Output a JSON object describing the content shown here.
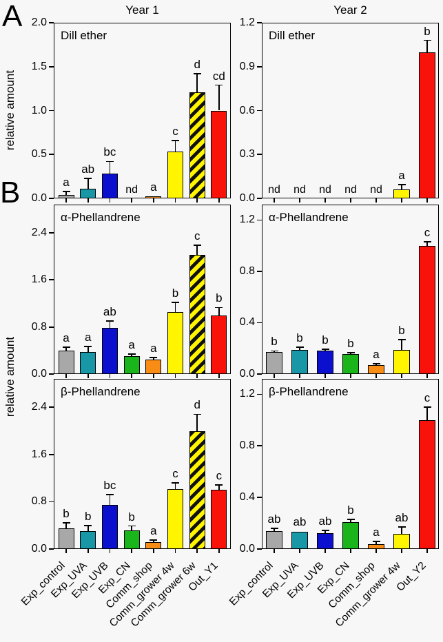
{
  "figure": {
    "panel_labels": [
      "A",
      "B"
    ],
    "column_titles": [
      "Year 1",
      "Year 2"
    ],
    "ylabel": "relative amount",
    "colors": {
      "gray": "#a8a8a8",
      "teal": "#1897a7",
      "blue": "#0b10cf",
      "green": "#1ab51a",
      "orange": "#f88c14",
      "yellow": "#fff500",
      "red": "#f91209",
      "hatch_stripe": "#111111",
      "axis": "#000000"
    }
  },
  "chart_data": [
    {
      "id": "dill-ether-year1",
      "type": "bar",
      "title": "Dill ether",
      "column_title": "Year 1",
      "row": 0,
      "col": 0,
      "ylim": [
        0,
        2.0
      ],
      "yticks": [
        0.0,
        0.5,
        1.0,
        1.5,
        2.0
      ],
      "categories": [
        "Exp_control",
        "Exp_UVA",
        "Exp_UVB",
        "Exp_CN",
        "Comm_shop",
        "Comm_grower 4w",
        "Comm_grower 6w",
        "Out_Y1"
      ],
      "bar_styles": [
        "gray",
        "teal",
        "blue",
        "green",
        "orange",
        "yellow",
        "hatched",
        "red"
      ],
      "values": [
        0.04,
        0.11,
        0.28,
        null,
        0.02,
        0.53,
        1.21,
        1.0
      ],
      "errors": [
        0.04,
        0.12,
        0.14,
        null,
        0.0,
        0.13,
        0.21,
        0.29
      ],
      "letters": [
        "a",
        "ab",
        "bc",
        "nd",
        "a",
        "c",
        "d",
        "cd"
      ]
    },
    {
      "id": "dill-ether-year2",
      "type": "bar",
      "title": "Dill ether",
      "column_title": "Year 2",
      "row": 0,
      "col": 1,
      "ylim": [
        0,
        1.2
      ],
      "yticks": [
        0.0,
        0.3,
        0.6,
        0.9,
        1.2
      ],
      "categories": [
        "Exp_control",
        "Exp_UVA",
        "Exp_UVB",
        "Exp_CN",
        "Comm_shop",
        "Comm_grower 4w",
        "Out_Y2"
      ],
      "bar_styles": [
        "gray",
        "teal",
        "blue",
        "green",
        "orange",
        "yellow",
        "red"
      ],
      "values": [
        null,
        null,
        null,
        null,
        null,
        0.06,
        1.0
      ],
      "errors": [
        null,
        null,
        null,
        null,
        null,
        0.035,
        0.08
      ],
      "letters": [
        "nd",
        "nd",
        "nd",
        "nd",
        "nd",
        "a",
        "b"
      ]
    },
    {
      "id": "alpha-phellandrene-year1",
      "type": "bar",
      "title": "α-Phellandrene",
      "column_title": "Year 1",
      "row": 1,
      "col": 0,
      "ylim": [
        0,
        2.88
      ],
      "yticks": [
        0.0,
        0.8,
        1.6,
        2.4
      ],
      "categories": [
        "Exp_control",
        "Exp_UVA",
        "Exp_UVB",
        "Exp_CN",
        "Comm_shop",
        "Comm_grower 4w",
        "Comm_grower 6w",
        "Out_Y1"
      ],
      "bar_styles": [
        "gray",
        "teal",
        "blue",
        "green",
        "orange",
        "yellow",
        "hatched",
        "red"
      ],
      "values": [
        0.4,
        0.37,
        0.78,
        0.3,
        0.25,
        1.05,
        2.02,
        1.0
      ],
      "errors": [
        0.06,
        0.1,
        0.12,
        0.04,
        0.03,
        0.17,
        0.17,
        0.13
      ],
      "letters": [
        "a",
        "a",
        "ab",
        "a",
        "a",
        "b",
        "c",
        "b"
      ]
    },
    {
      "id": "alpha-phellandrene-year2",
      "type": "bar",
      "title": "α-Phellandrene",
      "column_title": "Year 2",
      "row": 1,
      "col": 1,
      "ylim": [
        0,
        1.32
      ],
      "yticks": [
        0.0,
        0.4,
        0.8,
        1.2
      ],
      "categories": [
        "Exp_control",
        "Exp_UVA",
        "Exp_UVB",
        "Exp_CN",
        "Comm_shop",
        "Comm_grower 4w",
        "Out_Y2"
      ],
      "bar_styles": [
        "gray",
        "teal",
        "blue",
        "green",
        "orange",
        "yellow",
        "red"
      ],
      "values": [
        0.17,
        0.19,
        0.18,
        0.155,
        0.07,
        0.19,
        1.0
      ],
      "errors": [
        0.01,
        0.02,
        0.015,
        0.01,
        0.01,
        0.08,
        0.03
      ],
      "letters": [
        "b",
        "b",
        "b",
        "b",
        "a",
        "b",
        "c"
      ]
    },
    {
      "id": "beta-phellandrene-year1",
      "type": "bar",
      "title": "β-Phellandrene",
      "column_title": "Year 1",
      "row": 2,
      "col": 0,
      "ylim": [
        0,
        2.88
      ],
      "yticks": [
        0.0,
        0.8,
        1.6,
        2.4
      ],
      "categories": [
        "Exp_control",
        "Exp_UVA",
        "Exp_UVB",
        "Exp_CN",
        "Comm_shop",
        "Comm_grower 4w",
        "Comm_grower 6w",
        "Out_Y1"
      ],
      "bar_styles": [
        "gray",
        "teal",
        "blue",
        "green",
        "orange",
        "yellow",
        "hatched",
        "red"
      ],
      "values": [
        0.35,
        0.3,
        0.75,
        0.32,
        0.12,
        1.01,
        1.99,
        1.0
      ],
      "errors": [
        0.09,
        0.1,
        0.17,
        0.07,
        0.03,
        0.11,
        0.29,
        0.08
      ],
      "letters": [
        "b",
        "b",
        "bc",
        "b",
        "a",
        "c",
        "d",
        "c"
      ]
    },
    {
      "id": "beta-phellandrene-year2",
      "type": "bar",
      "title": "β-Phellandrene",
      "column_title": "Year 2",
      "row": 2,
      "col": 1,
      "ylim": [
        0,
        1.32
      ],
      "yticks": [
        0.0,
        0.4,
        0.8,
        1.2
      ],
      "categories": [
        "Exp_control",
        "Exp_UVA",
        "Exp_UVB",
        "Exp_CN",
        "Comm_shop",
        "Comm_grower 4w",
        "Out_Y2"
      ],
      "bar_styles": [
        "gray",
        "teal",
        "blue",
        "green",
        "orange",
        "yellow",
        "red"
      ],
      "values": [
        0.14,
        0.135,
        0.125,
        0.21,
        0.04,
        0.12,
        1.0
      ],
      "errors": [
        0.02,
        0.005,
        0.02,
        0.02,
        0.02,
        0.05,
        0.1
      ],
      "letters": [
        "ab",
        "ab",
        "ab",
        "b",
        "a",
        "ab",
        "c"
      ]
    }
  ]
}
